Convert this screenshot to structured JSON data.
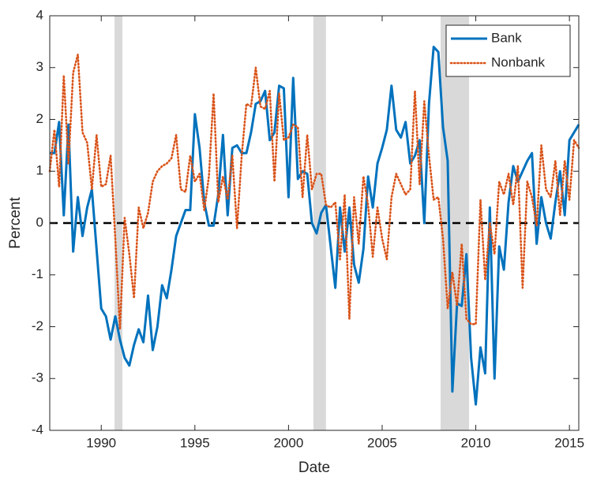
{
  "chart_data": {
    "type": "line",
    "xlabel": "Date",
    "ylabel": "Percent",
    "xlim": [
      1987.25,
      2015.5
    ],
    "xticks": [
      1990,
      1995,
      2000,
      2005,
      2010,
      2015
    ],
    "ylim": [
      -4,
      4
    ],
    "yticks": [
      -4,
      -3,
      -2,
      -1,
      0,
      1,
      2,
      3,
      4
    ],
    "reference_line": 0,
    "shaded_periods": [
      [
        1990.71,
        1991.13
      ],
      [
        2001.33,
        2002.0
      ],
      [
        2008.12,
        2009.64
      ]
    ],
    "legend": "upper right",
    "x": [
      1987.25,
      1987.5,
      1987.75,
      1988,
      1988.25,
      1988.5,
      1988.75,
      1989,
      1989.25,
      1989.5,
      1989.75,
      1990,
      1990.25,
      1990.5,
      1990.75,
      1991,
      1991.25,
      1991.5,
      1991.75,
      1992,
      1992.25,
      1992.5,
      1992.75,
      1993,
      1993.25,
      1993.5,
      1993.75,
      1994,
      1994.25,
      1994.5,
      1994.75,
      1995,
      1995.25,
      1995.5,
      1995.75,
      1996,
      1996.25,
      1996.5,
      1996.75,
      1997,
      1997.25,
      1997.5,
      1997.75,
      1998,
      1998.25,
      1998.5,
      1998.75,
      1999,
      1999.25,
      1999.5,
      1999.75,
      2000,
      2000.25,
      2000.5,
      2000.75,
      2001,
      2001.25,
      2001.5,
      2001.75,
      2002,
      2002.25,
      2002.5,
      2002.75,
      2003,
      2003.25,
      2003.5,
      2003.75,
      2004,
      2004.25,
      2004.5,
      2004.75,
      2005,
      2005.25,
      2005.5,
      2005.75,
      2006,
      2006.25,
      2006.5,
      2006.75,
      2007,
      2007.25,
      2007.5,
      2007.75,
      2008,
      2008.25,
      2008.5,
      2008.75,
      2009,
      2009.25,
      2009.5,
      2009.75,
      2010,
      2010.25,
      2010.5,
      2010.75,
      2011,
      2011.25,
      2011.5,
      2011.75,
      2012,
      2012.25,
      2012.5,
      2012.75,
      2013,
      2013.25,
      2013.5,
      2013.75,
      2014,
      2014.25,
      2014.5,
      2014.75,
      2015,
      2015.25,
      2015.5
    ],
    "series": [
      {
        "name": "Bank",
        "color": "#0072bd",
        "values": [
          1.35,
          1.35,
          1.95,
          0.15,
          1.9,
          -0.55,
          0.5,
          -0.25,
          0.3,
          0.65,
          -0.5,
          -1.65,
          -1.8,
          -2.25,
          -1.8,
          -2.25,
          -2.6,
          -2.75,
          -2.35,
          -2.05,
          -2.3,
          -1.4,
          -2.45,
          -2.0,
          -1.2,
          -1.45,
          -0.9,
          -0.25,
          0.0,
          0.25,
          0.25,
          2.1,
          1.45,
          0.4,
          -0.05,
          -0.05,
          0.55,
          1.7,
          0.15,
          1.45,
          1.5,
          1.35,
          1.35,
          1.75,
          2.3,
          2.35,
          2.55,
          1.6,
          1.75,
          2.65,
          2.6,
          0.5,
          2.8,
          0.85,
          1.0,
          0.95,
          0.0,
          -0.2,
          0.2,
          0.35,
          -0.45,
          -1.25,
          0.3,
          -0.55,
          0.3,
          -0.8,
          -1.15,
          -0.5,
          0.9,
          0.3,
          1.15,
          1.45,
          1.8,
          2.65,
          1.8,
          1.65,
          1.95,
          1.15,
          1.3,
          1.6,
          0.0,
          2.3,
          3.4,
          3.3,
          1.85,
          1.2,
          -3.25,
          -1.55,
          -1.6,
          -0.6,
          -2.6,
          -3.5,
          -2.4,
          -2.9,
          0.3,
          -3.0,
          -0.45,
          -0.9,
          0.4,
          1.1,
          0.8,
          1.0,
          1.2,
          1.35,
          -0.4,
          0.5,
          0.0,
          -0.3,
          0.4,
          1.0,
          0.15,
          1.6,
          1.75,
          1.9
        ]
      },
      {
        "name": "Nonbank",
        "color": "#d95319",
        "dash": "dotted",
        "values": [
          1.0,
          1.8,
          0.7,
          2.85,
          1.15,
          2.9,
          3.25,
          1.75,
          1.55,
          0.65,
          1.7,
          0.7,
          0.75,
          1.3,
          -0.3,
          -2.05,
          0.1,
          -0.6,
          -1.45,
          0.3,
          -0.1,
          0.2,
          0.8,
          1.0,
          1.1,
          1.15,
          1.25,
          1.7,
          0.65,
          0.6,
          1.3,
          0.8,
          0.95,
          0.25,
          0.9,
          2.5,
          0.4,
          0.9,
          0.45,
          1.3,
          -0.1,
          1.3,
          2.3,
          2.25,
          3.0,
          2.25,
          2.2,
          2.55,
          0.8,
          2.5,
          1.6,
          1.65,
          1.9,
          1.85,
          0.5,
          1.7,
          0.65,
          0.95,
          0.95,
          0.35,
          0.3,
          0.4,
          -0.7,
          0.55,
          -1.85,
          0.5,
          -0.4,
          0.9,
          0.35,
          -0.65,
          0.3,
          -0.3,
          -0.7,
          0.5,
          0.95,
          0.75,
          0.55,
          0.65,
          2.55,
          0.75,
          2.35,
          1.3,
          0.45,
          0.5,
          -0.3,
          -1.65,
          -0.95,
          -1.6,
          -0.4,
          -1.85,
          -1.95,
          -1.95,
          0.45,
          -1.1,
          0.0,
          -0.6,
          0.8,
          0.55,
          0.95,
          0.35,
          1.1,
          -1.25,
          0.8,
          0.5,
          -0.05,
          1.5,
          0.65,
          0.5,
          1.2,
          0.15,
          1.2,
          0.45,
          1.6,
          1.45
        ]
      }
    ]
  }
}
